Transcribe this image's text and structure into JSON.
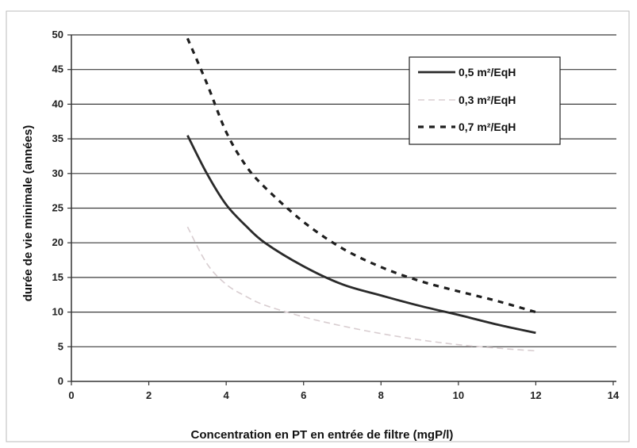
{
  "chart_data": {
    "type": "line",
    "title": "",
    "xlabel": "Concentration en PT en entrée de filtre (mgP/l)",
    "ylabel": "durée de vie minimale (années)",
    "xlim": [
      0,
      14
    ],
    "ylim": [
      0,
      50
    ],
    "xticks": [
      0,
      2,
      4,
      6,
      8,
      10,
      12,
      14
    ],
    "yticks": [
      0,
      5,
      10,
      15,
      20,
      25,
      30,
      35,
      40,
      45,
      50
    ],
    "grid": "horizontal",
    "legend_position": "top-right",
    "series": [
      {
        "name": "0,5 m²/EqH",
        "color": "#2a2a2a",
        "style": "solid",
        "x": [
          3.0,
          3.5,
          4.0,
          4.5,
          5.0,
          6.0,
          7.0,
          8.0,
          9.0,
          10.0,
          11.0,
          12.0
        ],
        "y": [
          35.5,
          30.0,
          25.5,
          22.5,
          20.0,
          16.6,
          14.0,
          12.4,
          10.9,
          9.6,
          8.2,
          7.0
        ]
      },
      {
        "name": "0,3 m²/EqH",
        "color": "#d8cdd0",
        "style": "dashed-light",
        "x": [
          3.0,
          3.5,
          4.0,
          4.5,
          5.0,
          6.0,
          7.0,
          8.0,
          9.0,
          10.0,
          11.0,
          12.0
        ],
        "y": [
          22.3,
          17.0,
          14.0,
          12.3,
          11.0,
          9.3,
          8.0,
          6.9,
          6.0,
          5.3,
          4.8,
          4.4
        ]
      },
      {
        "name": "0,7 m²/EqH",
        "color": "#1e1e1e",
        "style": "dashed",
        "x": [
          3.0,
          3.5,
          4.0,
          4.5,
          5.0,
          6.0,
          7.0,
          8.0,
          9.0,
          10.0,
          11.0,
          12.0
        ],
        "y": [
          49.5,
          43.0,
          36.0,
          31.2,
          28.0,
          23.0,
          19.2,
          16.5,
          14.5,
          13.0,
          11.6,
          10.0
        ]
      }
    ]
  }
}
